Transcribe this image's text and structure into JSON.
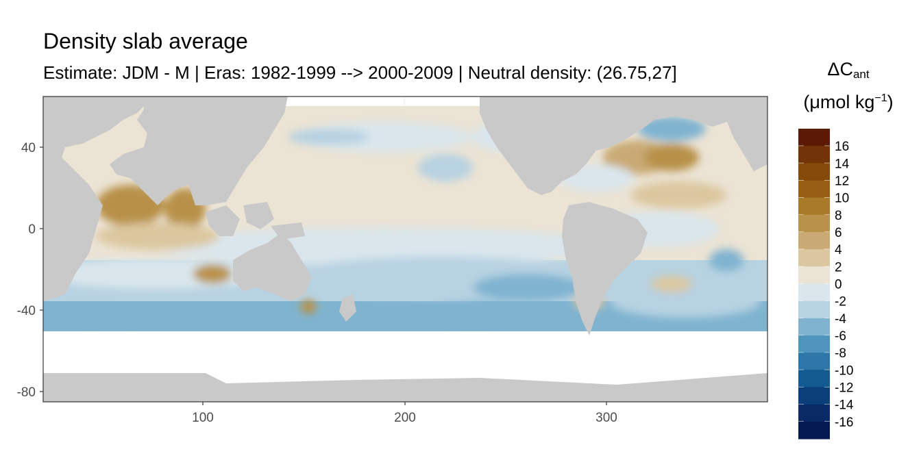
{
  "title": "Density slab average",
  "subtitle": "Estimate: JDM - M | Eras: 1982-1999 --> 2000-2009 | Neutral density: (26.75,27]",
  "legend": {
    "symbol": "ΔC",
    "subscript": "ant",
    "unit_prefix": "(μmol kg",
    "unit_exponent": "−1",
    "unit_suffix": ")",
    "bins": [
      {
        "label": "16",
        "color": "#5a1a06"
      },
      {
        "label": "14",
        "color": "#713408"
      },
      {
        "label": "12",
        "color": "#854a0a"
      },
      {
        "label": "10",
        "color": "#965f14"
      },
      {
        "label": "8",
        "color": "#a87a2a"
      },
      {
        "label": "6",
        "color": "#b8914a"
      },
      {
        "label": "4",
        "color": "#c9aa74"
      },
      {
        "label": "2",
        "color": "#dbc79f"
      },
      {
        "label": "0",
        "color": "#ebe3d4"
      },
      {
        "label": "-2",
        "color": "#dae6ec"
      },
      {
        "label": "-4",
        "color": "#b7d2e1"
      },
      {
        "label": "-6",
        "color": "#7fb3d0"
      },
      {
        "label": "-8",
        "color": "#4e94bc"
      },
      {
        "label": "-10",
        "color": "#2d76a8"
      },
      {
        "label": "-12",
        "color": "#135a91"
      },
      {
        "label": "-14",
        "color": "#0b3f7a"
      },
      {
        "label": "-16",
        "color": "#0a2a66"
      },
      {
        "label": "",
        "color": "#061a52"
      }
    ]
  },
  "axes": {
    "x_ticks": [
      "100",
      "200",
      "300"
    ],
    "y_ticks": [
      "40",
      "0",
      "-40",
      "-80"
    ],
    "xlim": [
      20,
      381
    ],
    "ylim": [
      -85,
      65
    ]
  },
  "colors": {
    "land": "#c9c9c9",
    "no_data": "#ffffff",
    "panel_border": "#333333"
  }
}
